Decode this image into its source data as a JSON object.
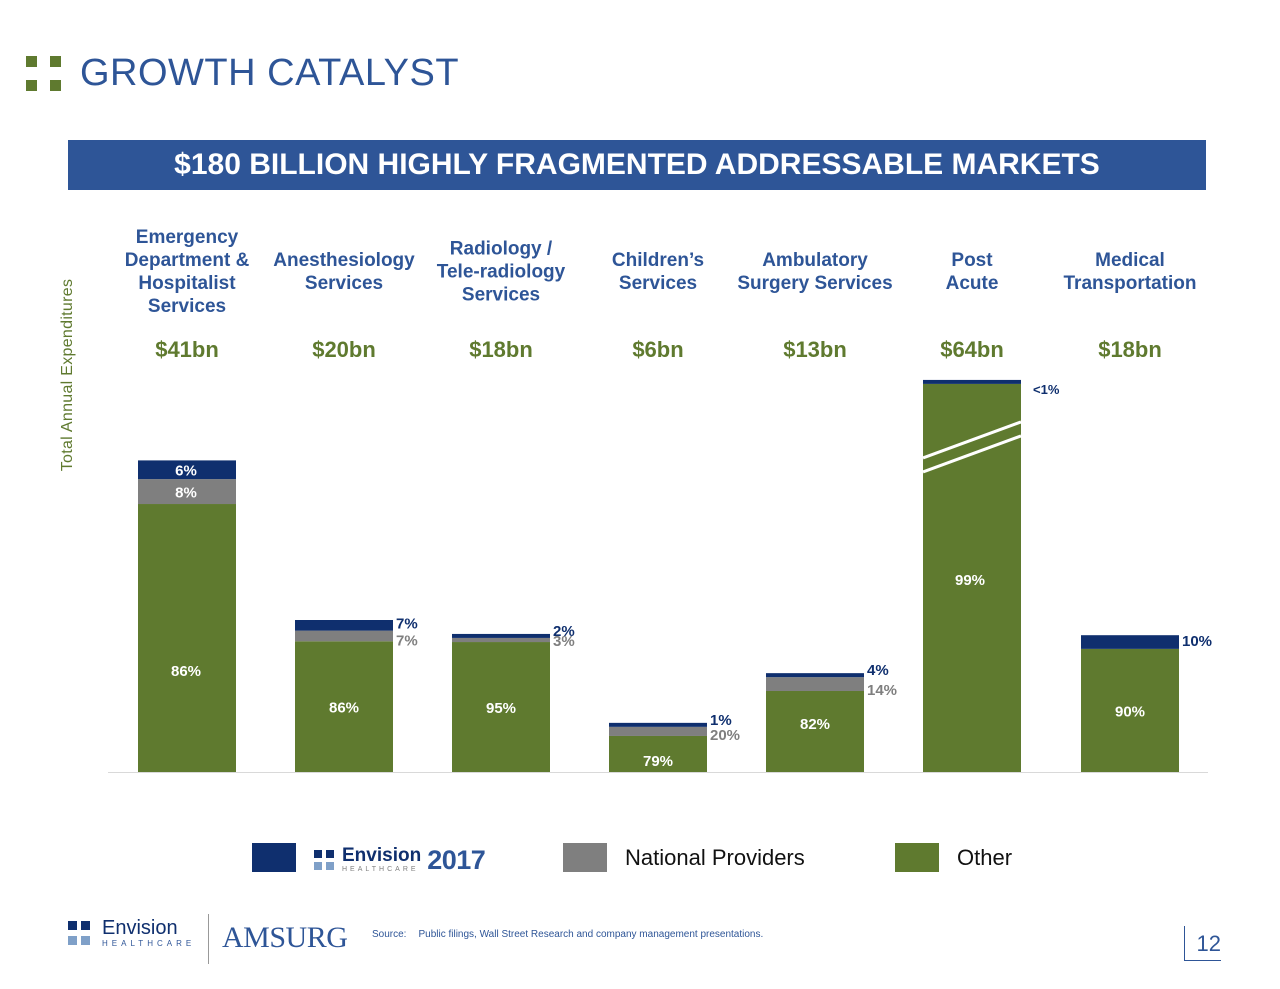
{
  "page": {
    "title": "GROWTH CATALYST",
    "banner": "$180 BILLION HIGHLY FRAGMENTED ADDRESSABLE MARKETS",
    "source_label": "Source:",
    "source_text": "Public filings, Wall Street Research and company management presentations.",
    "page_number": "12",
    "footer_company": "AMSURG",
    "envision_word": "Envision",
    "envision_sub": "HEALTHCARE",
    "legend_envision_year": "2017"
  },
  "colors": {
    "envision": "#0f2f6e",
    "national": "#7f7f7f",
    "other": "#5f7a2f",
    "title_blue": "#2e5597"
  },
  "chart_data": {
    "type": "bar",
    "stacked": true,
    "ylabel": "Total Annual Expenditures",
    "categories": [
      {
        "lines": [
          "Emergency",
          "Department &",
          "Hospitalist",
          "Services"
        ],
        "total": "$41bn"
      },
      {
        "lines": [
          "Anesthesiology",
          "Services"
        ],
        "total": "$20bn"
      },
      {
        "lines": [
          "Radiology /",
          "Tele-radiology",
          "Services"
        ],
        "total": "$18bn"
      },
      {
        "lines": [
          "Children’s",
          "Services"
        ],
        "total": "$6bn"
      },
      {
        "lines": [
          "Ambulatory",
          "Surgery Services"
        ],
        "total": "$13bn"
      },
      {
        "lines": [
          "Post",
          "Acute"
        ],
        "total": "$64bn"
      },
      {
        "lines": [
          "Medical",
          "Transportation"
        ],
        "total": "$18bn"
      }
    ],
    "totals_bn": [
      41,
      20,
      18,
      6,
      13,
      64,
      18
    ],
    "axis_break_category": "Post Acute",
    "series": [
      {
        "name": "Envision 2017",
        "values": [
          6,
          7,
          2,
          1,
          4,
          1,
          10
        ],
        "labels": [
          "6%",
          "7%",
          "2%",
          "1%",
          "4%",
          "<1%",
          "10%"
        ]
      },
      {
        "name": "National Providers",
        "values": [
          8,
          7,
          3,
          20,
          14,
          0,
          0
        ],
        "labels": [
          "8%",
          "7%",
          "3%",
          "20%",
          "14%",
          "",
          ""
        ]
      },
      {
        "name": "Other",
        "values": [
          86,
          86,
          95,
          79,
          82,
          99,
          90
        ],
        "labels": [
          "86%",
          "86%",
          "95%",
          "79%",
          "82%",
          "99%",
          "90%"
        ]
      }
    ],
    "legend": [
      "Envision 2017",
      "National Providers",
      "Other"
    ],
    "legend_position": "bottom",
    "grid": false
  }
}
